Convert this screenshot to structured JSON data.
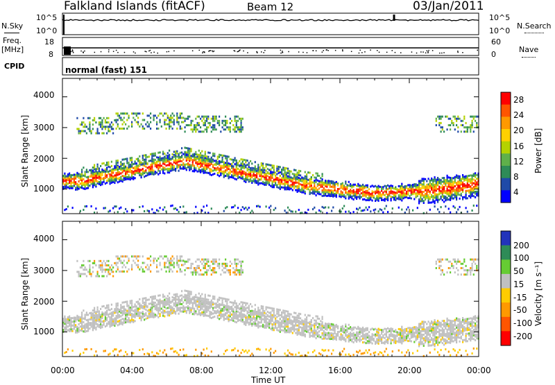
{
  "header": {
    "station": "Falkland Islands (fitACF)",
    "beam": "Beam 12",
    "date": "03/Jan/2011"
  },
  "side_labels": {
    "nsky": "N.Sky",
    "freq": "Freq.",
    "mhz": "[MHz]",
    "cpid": "CPID",
    "nsearch": "N.Search",
    "nave": "Nave"
  },
  "cpid_value": "normal (fast) 151",
  "chart_data": [
    {
      "type": "line",
      "name": "noise-panel",
      "left_ticks": [
        "10^5",
        "10^0"
      ],
      "right_ticks": [
        "10^5",
        "10^0"
      ]
    },
    {
      "type": "scatter",
      "name": "freq-nave-panel",
      "left_ticks": [
        "18",
        "8"
      ],
      "right_ticks": [
        "60",
        "0"
      ]
    },
    {
      "type": "heatmap",
      "name": "power",
      "ylabel": "Slant Range [km]",
      "yticks": [
        "4000",
        "3000",
        "2000",
        "1000"
      ],
      "ylim": [
        200,
        4600
      ],
      "colorbar": {
        "label": "Power [dB]",
        "ticks": [
          "28",
          "24",
          "20",
          "16",
          "12",
          "8",
          "4"
        ],
        "colors": [
          "#ff0000",
          "#ff5500",
          "#ff9900",
          "#ffd000",
          "#b4d200",
          "#5fb04a",
          "#2e8b57",
          "#1f4aa8",
          "#0000ff"
        ]
      }
    },
    {
      "type": "heatmap",
      "name": "velocity",
      "ylabel": "Slant Range [km]",
      "yticks": [
        "4000",
        "3000",
        "2000",
        "1000"
      ],
      "ylim": [
        200,
        4600
      ],
      "colorbar": {
        "label": "Velocity [m s⁻¹]",
        "ticks": [
          "200",
          "100",
          "50",
          "15",
          "-15",
          "-50",
          "-100",
          "-200"
        ],
        "colors": [
          "#2233bb",
          "#2e8b57",
          "#66cc33",
          "#c0c0c0",
          "#ffcc00",
          "#ff9900",
          "#ff5500",
          "#ff0000"
        ]
      }
    }
  ],
  "xaxis": {
    "ticks": [
      "00:00",
      "04:00",
      "08:00",
      "12:00",
      "16:00",
      "20:00",
      "00:00"
    ],
    "label": "Time UT"
  }
}
